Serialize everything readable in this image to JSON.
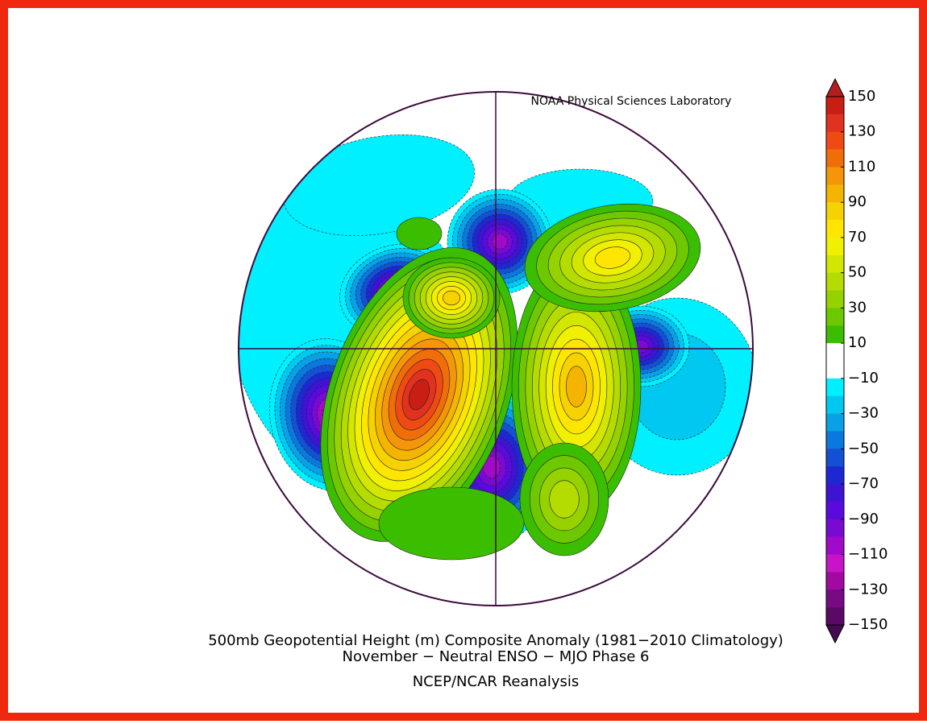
{
  "header": {
    "title": "NOAA Physical Sciences Laboratory"
  },
  "caption": [
    "500mb Geopotential Height (m) Composite Anomaly (1981−2010 Climatology)",
    "November − Neutral ENSO − MJO Phase 6",
    "NCEP/NCAR Reanalysis"
  ],
  "colorbar": {
    "limits": [
      -150,
      150
    ],
    "ticks": [
      150,
      130,
      110,
      90,
      70,
      50,
      30,
      10,
      {
        "value": -10,
        "label": "−10"
      },
      {
        "value": -30,
        "label": "−30"
      },
      {
        "value": -50,
        "label": "−50"
      },
      {
        "value": -70,
        "label": "−70"
      },
      {
        "value": -90,
        "label": "−90"
      },
      {
        "value": -110,
        "label": "−110"
      },
      {
        "value": -130,
        "label": "−130"
      },
      {
        "value": -150,
        "label": "−150"
      }
    ],
    "colors": [
      "#c81e14",
      "#e0321e",
      "#f04a14",
      "#f06e0a",
      "#f5960a",
      "#f5b400",
      "#f5d200",
      "#ffe600",
      "#f0f000",
      "#d2e600",
      "#b4dc00",
      "#96d200",
      "#6ec800",
      "#3cbe00",
      "#ffffff",
      "#ffffff",
      "#00f0ff",
      "#00c8f0",
      "#0aa0e6",
      "#0a78dc",
      "#1450d2",
      "#1e28d2",
      "#3c14d2",
      "#5a0adc",
      "#780ad2",
      "#a00ac8",
      "#c814c8",
      "#a00aa0",
      "#780a82",
      "#5a0a64"
    ],
    "over_color": "#b41e1e",
    "under_color": "#460a50"
  }
}
